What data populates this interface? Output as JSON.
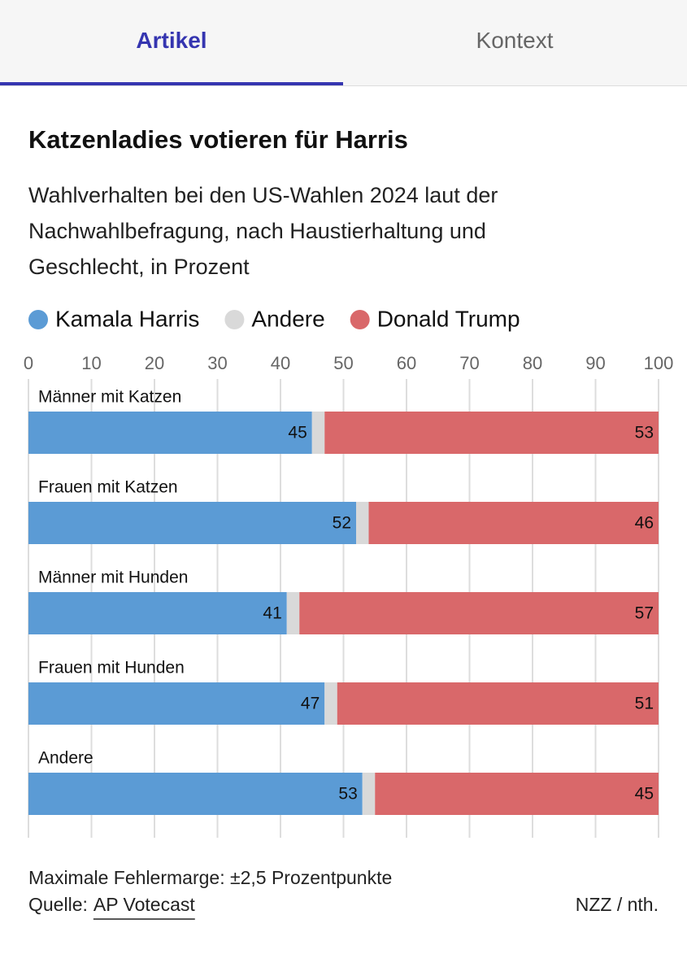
{
  "tabs": [
    "Artikel",
    "Kontext"
  ],
  "chart_data": {
    "type": "stacked-bar-horizontal",
    "title": "Katzenladies votieren für Harris",
    "subtitle": "Wahlverhalten bei den US-Wahlen 2024 laut der Nachwahlbefragung, nach Haustierhaltung und Geschlecht, in Prozent",
    "categories": [
      "Männer mit Katzen",
      "Frauen mit Katzen",
      "Männer mit Hunden",
      "Frauen mit Hunden",
      "Andere"
    ],
    "series": [
      {
        "name": "Kamala Harris",
        "color": "#5b9bd5",
        "values": [
          45,
          52,
          41,
          47,
          53
        ],
        "labels": true
      },
      {
        "name": "Andere",
        "color": "#d9d9d9",
        "values": [
          2,
          2,
          2,
          2,
          2
        ],
        "labels": false
      },
      {
        "name": "Donald Trump",
        "color": "#d9686a",
        "values": [
          53,
          46,
          57,
          51,
          45
        ],
        "labels": true
      }
    ],
    "xlim": [
      0,
      100
    ],
    "xticks": [
      0,
      10,
      20,
      30,
      40,
      50,
      60,
      70,
      80,
      90,
      100
    ],
    "grid": true,
    "note": "Maximale Fehlermarge: ±2,5 Prozentpunkte",
    "source_label": "Quelle:",
    "source": "AP Votecast",
    "credit": "NZZ / nth."
  }
}
